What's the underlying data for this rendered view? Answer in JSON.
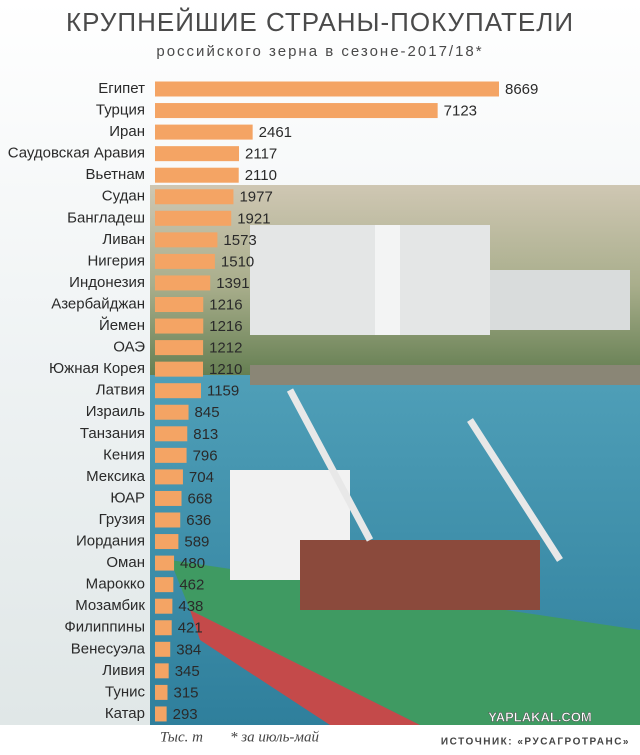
{
  "chart_data": {
    "type": "bar",
    "orientation": "horizontal",
    "title": "КРУПНЕЙШИЕ СТРАНЫ-ПОКУПАТЕЛИ",
    "subtitle": "российского зерна в сезоне-2017/18*",
    "unit": "Тыс. т",
    "note": "* за июль-май",
    "source": "ИСТОЧНИК: «РУСАГРОТРАНС»",
    "watermark": "YAPLAKAL.COM",
    "color": "#f4a464",
    "categories": [
      "Египет",
      "Турция",
      "Иран",
      "Саудовская Аравия",
      "Вьетнам",
      "Судан",
      "Бангладеш",
      "Ливан",
      "Нигерия",
      "Индонезия",
      "Азербайджан",
      "Йемен",
      "ОАЭ",
      "Южная Корея",
      "Латвия",
      "Израиль",
      "Танзания",
      "Кения",
      "Мексика",
      "ЮАР",
      "Грузия",
      "Иордания",
      "Оман",
      "Марокко",
      "Мозамбик",
      "Филиппины",
      "Венесуэла",
      "Ливия",
      "Тунис",
      "Катар"
    ],
    "values": [
      8669,
      7123,
      2461,
      2117,
      2110,
      1977,
      1921,
      1573,
      1510,
      1391,
      1216,
      1216,
      1212,
      1210,
      1159,
      845,
      813,
      796,
      704,
      668,
      636,
      589,
      480,
      462,
      438,
      421,
      384,
      345,
      315,
      293
    ]
  }
}
